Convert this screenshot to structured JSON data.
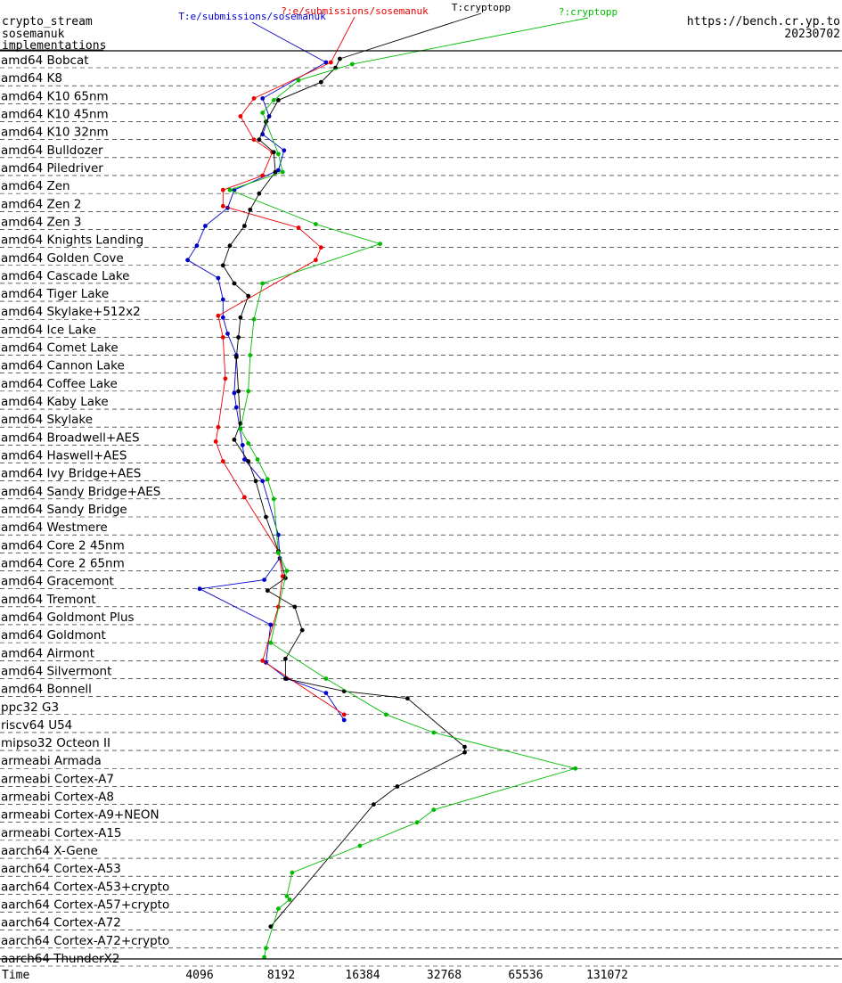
{
  "header": {
    "left_lines": [
      "crypto_stream",
      "sosemanuk",
      "implementations"
    ],
    "right_lines": [
      "https://bench.cr.yp.to",
      "20230702"
    ],
    "series_labels": [
      {
        "text": "T:e/submissions/sosemanuk",
        "color": "#0000cc"
      },
      {
        "text": "?:e/submissions/sosemanuk",
        "color": "#ee0000"
      },
      {
        "text": "T:cryptopp",
        "color": "#000000"
      },
      {
        "text": "?:cryptopp",
        "color": "#00bb00"
      }
    ]
  },
  "chart_data": {
    "type": "scatter",
    "xlabel": "Time",
    "x_scale": "log2",
    "x_ticks": [
      4096,
      8192,
      16384,
      32768,
      65536,
      131072
    ],
    "categories": [
      "amd64 Bobcat",
      "amd64 K8",
      "amd64 K10 65nm",
      "amd64 K10 45nm",
      "amd64 K10 32nm",
      "amd64 Bulldozer",
      "amd64 Piledriver",
      "amd64 Zen",
      "amd64 Zen 2",
      "amd64 Zen 3",
      "amd64 Knights Landing",
      "amd64 Golden Cove",
      "amd64 Cascade Lake",
      "amd64 Tiger Lake",
      "amd64 Skylake+512x2",
      "amd64 Ice Lake",
      "amd64 Comet Lake",
      "amd64 Cannon Lake",
      "amd64 Coffee Lake",
      "amd64 Kaby Lake",
      "amd64 Skylake",
      "amd64 Broadwell+AES",
      "amd64 Haswell+AES",
      "amd64 Ivy Bridge+AES",
      "amd64 Sandy Bridge+AES",
      "amd64 Sandy Bridge",
      "amd64 Westmere",
      "amd64 Core 2 45nm",
      "amd64 Core 2 65nm",
      "amd64 Gracemont",
      "amd64 Tremont",
      "amd64 Goldmont Plus",
      "amd64 Goldmont",
      "amd64 Airmont",
      "amd64 Silvermont",
      "amd64 Bonnell",
      "ppc32 G3",
      "riscv64 U54",
      "mipso32 Octeon II",
      "armeabi Armada",
      "armeabi Cortex-A7",
      "armeabi Cortex-A8",
      "armeabi Cortex-A9+NEON",
      "armeabi Cortex-A15",
      "aarch64 X-Gene",
      "aarch64 Cortex-A53",
      "aarch64 Cortex-A53+crypto",
      "aarch64 Cortex-A57+crypto",
      "aarch64 Cortex-A72",
      "aarch64 Cortex-A72+crypto",
      "aarch64 ThunderX2"
    ],
    "series": [
      {
        "name": "T:e/submissions/sosemanuk",
        "color": "#0000cc",
        "points": [
          [
            0.2,
            12000
          ],
          [
            2.2,
            7000
          ],
          [
            3.2,
            7400
          ],
          [
            4.2,
            7000
          ],
          [
            5.1,
            8400
          ],
          [
            6.2,
            8000
          ],
          [
            7.3,
            5500
          ],
          [
            8.3,
            5200
          ],
          [
            9.3,
            4300
          ],
          [
            10.4,
            4000
          ],
          [
            11.2,
            3700
          ],
          [
            12.2,
            4800
          ],
          [
            13.4,
            5000
          ],
          [
            14.4,
            5000
          ],
          [
            15.3,
            5200
          ],
          [
            16.5,
            5600
          ],
          [
            18.6,
            5500
          ],
          [
            19.4,
            5600
          ],
          [
            21.5,
            5900
          ],
          [
            22.3,
            6000
          ],
          [
            23.5,
            7000
          ],
          [
            26.5,
            8000
          ],
          [
            27.8,
            8100
          ],
          [
            29.0,
            7100
          ],
          [
            29.5,
            4100
          ],
          [
            31.5,
            7500
          ],
          [
            33.6,
            7200
          ],
          [
            34.5,
            8600
          ],
          [
            35.3,
            12000
          ],
          [
            36.8,
            14000
          ]
        ]
      },
      {
        "name": "?:e/submissions/sosemanuk",
        "color": "#ee0000",
        "points": [
          [
            0.2,
            12500
          ],
          [
            2.2,
            6500
          ],
          [
            3.2,
            5800
          ],
          [
            4.5,
            6500
          ],
          [
            5.2,
            7600
          ],
          [
            6.5,
            7000
          ],
          [
            7.3,
            5000
          ],
          [
            8.2,
            5000
          ],
          [
            9.4,
            9500
          ],
          [
            10.5,
            11500
          ],
          [
            11.2,
            11000
          ],
          [
            14.3,
            4800
          ],
          [
            15.5,
            5000
          ],
          [
            17.8,
            5100
          ],
          [
            20.5,
            4800
          ],
          [
            21.3,
            4700
          ],
          [
            22.4,
            5000
          ],
          [
            24.4,
            6000
          ],
          [
            27.4,
            8000
          ],
          [
            28.8,
            8300
          ],
          [
            30.5,
            8000
          ],
          [
            33.5,
            7000
          ],
          [
            36.5,
            14000
          ]
        ]
      },
      {
        "name": "T:cryptopp",
        "color": "#000000",
        "points": [
          [
            0.0,
            13500
          ],
          [
            0.5,
            13000
          ],
          [
            1.3,
            11500
          ],
          [
            2.3,
            8000
          ],
          [
            3.5,
            7200
          ],
          [
            4.5,
            6800
          ],
          [
            5.2,
            7700
          ],
          [
            6.3,
            7800
          ],
          [
            7.5,
            6800
          ],
          [
            8.4,
            6300
          ],
          [
            9.3,
            6000
          ],
          [
            10.4,
            5300
          ],
          [
            11.5,
            5000
          ],
          [
            12.5,
            5500
          ],
          [
            13.2,
            6200
          ],
          [
            14.4,
            5800
          ],
          [
            15.5,
            5700
          ],
          [
            16.6,
            5600
          ],
          [
            18.5,
            5700
          ],
          [
            20.3,
            5800
          ],
          [
            21.2,
            5500
          ],
          [
            22.4,
            6200
          ],
          [
            23.5,
            6600
          ],
          [
            25.5,
            7200
          ],
          [
            27.4,
            8000
          ],
          [
            28.9,
            8500
          ],
          [
            29.6,
            7300
          ],
          [
            30.5,
            9200
          ],
          [
            31.8,
            9800
          ],
          [
            33.4,
            8500
          ],
          [
            34.5,
            8500
          ],
          [
            35.2,
            14000
          ],
          [
            35.6,
            24000
          ],
          [
            38.3,
            39000
          ],
          [
            38.6,
            39000
          ],
          [
            40.5,
            22000
          ],
          [
            41.5,
            18000
          ],
          [
            48.3,
            7500
          ]
        ]
      },
      {
        "name": "?:cryptopp",
        "color": "#00bb00",
        "points": [
          [
            0.3,
            15000
          ],
          [
            1.2,
            9500
          ],
          [
            2.3,
            7700
          ],
          [
            3.0,
            7000
          ],
          [
            5.3,
            8000
          ],
          [
            6.3,
            8300
          ],
          [
            7.3,
            5300
          ],
          [
            9.2,
            11000
          ],
          [
            10.3,
            19000
          ],
          [
            12.5,
            7000
          ],
          [
            14.5,
            6500
          ],
          [
            16.5,
            6300
          ],
          [
            18.5,
            6200
          ],
          [
            20.6,
            5800
          ],
          [
            21.4,
            6200
          ],
          [
            22.3,
            6700
          ],
          [
            23.4,
            7300
          ],
          [
            24.5,
            7700
          ],
          [
            27.5,
            8000
          ],
          [
            28.5,
            8600
          ],
          [
            32.5,
            7500
          ],
          [
            34.5,
            12000
          ],
          [
            36.5,
            20000
          ],
          [
            37.5,
            30000
          ],
          [
            39.5,
            100000
          ],
          [
            41.8,
            30000
          ],
          [
            42.5,
            26000
          ],
          [
            43.8,
            16000
          ],
          [
            45.3,
            9000
          ],
          [
            46.6,
            8600
          ],
          [
            46.8,
            8800
          ],
          [
            47.3,
            8000
          ],
          [
            49.5,
            7200
          ],
          [
            50.0,
            7100
          ]
        ]
      }
    ]
  }
}
